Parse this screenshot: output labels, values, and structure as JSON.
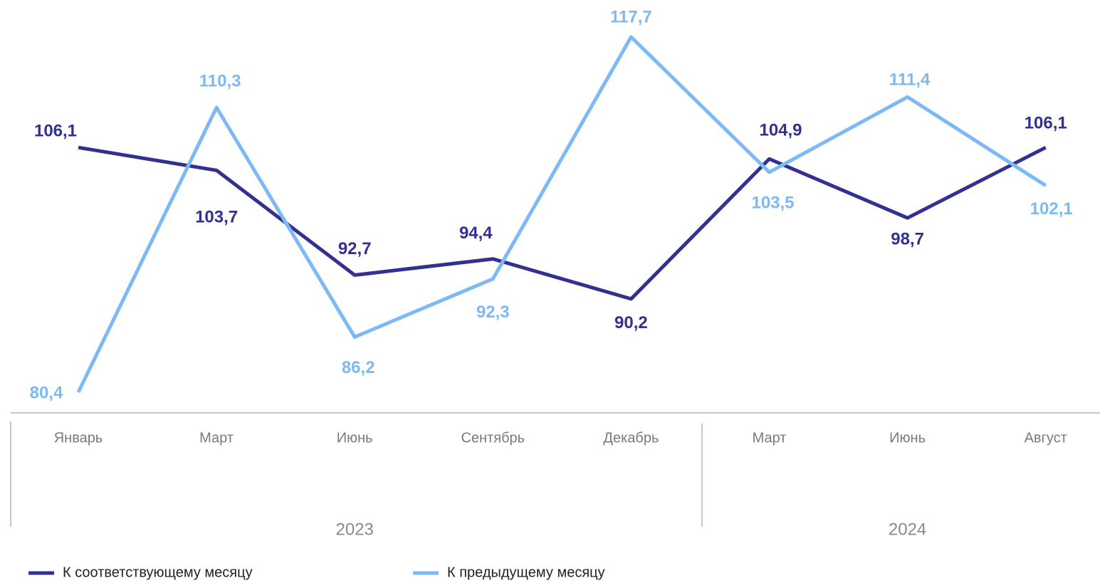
{
  "chart_data": {
    "type": "line",
    "groups": [
      {
        "label": "2023",
        "categories": [
          "Январь",
          "Март",
          "Июнь",
          "Сентябрь",
          "Декабрь"
        ]
      },
      {
        "label": "2024",
        "categories": [
          "Март",
          "Июнь",
          "Август"
        ]
      }
    ],
    "series": [
      {
        "name": "К соответствующему месяцу",
        "color": "#33318f",
        "values": [
          106.1,
          103.7,
          92.7,
          94.4,
          90.2,
          104.9,
          98.7,
          106.1
        ],
        "value_labels": [
          "106,1",
          "103,7",
          "92,7",
          "94,4",
          "90,2",
          "104,9",
          "98,7",
          "106,1"
        ]
      },
      {
        "name": "К предыдущему месяцу",
        "color": "#7cb9f5",
        "values": [
          80.4,
          110.3,
          86.2,
          92.3,
          117.7,
          103.5,
          111.4,
          102.1
        ],
        "value_labels": [
          "80,4",
          "110,3",
          "86,2",
          "92,3",
          "117,7",
          "103,5",
          "111,4",
          "102,1"
        ]
      }
    ],
    "legend": "bottom-left"
  }
}
